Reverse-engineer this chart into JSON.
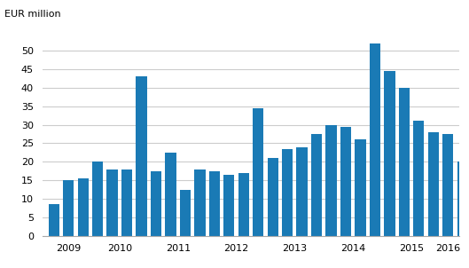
{
  "values": [
    8.5,
    15,
    15.5,
    20,
    18,
    18,
    43,
    17.5,
    22.5,
    12.5,
    18,
    17.5,
    16.5,
    17,
    34.5,
    21,
    23.5,
    24,
    27.5,
    30,
    29.5,
    26,
    52,
    44.5,
    40,
    31,
    28,
    27.5,
    20
  ],
  "year_labels": [
    2009,
    2010,
    2011,
    2012,
    2013,
    2014,
    2015,
    2016
  ],
  "bar_color": "#1a7ab5",
  "ylabel": "EUR million",
  "ylim": [
    0,
    55
  ],
  "yticks": [
    0,
    5,
    10,
    15,
    20,
    25,
    30,
    35,
    40,
    45,
    50
  ],
  "background_color": "#ffffff",
  "grid_color": "#cccccc",
  "quarters_per_year": [
    3,
    4,
    4,
    4,
    4,
    4,
    4,
    1
  ],
  "bar_width": 0.75
}
